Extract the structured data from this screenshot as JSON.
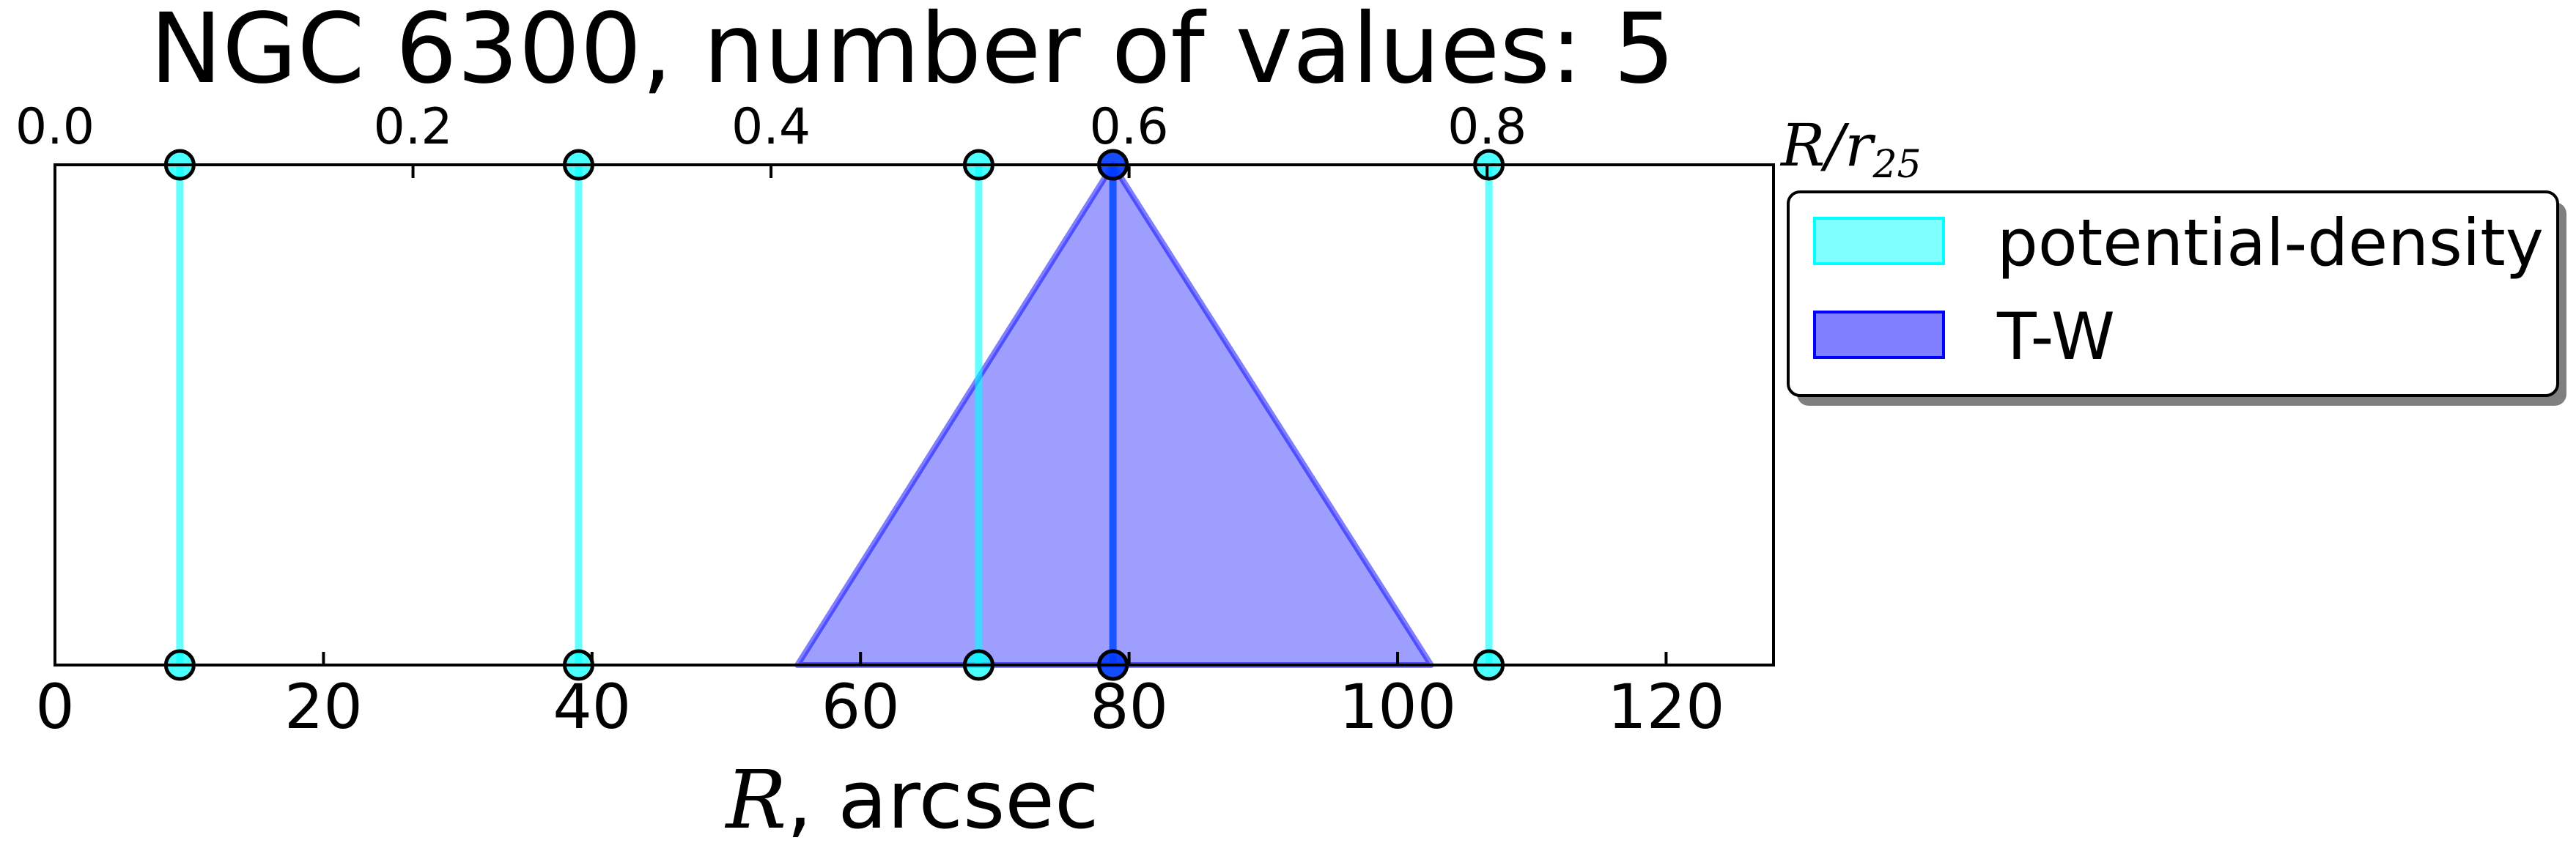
{
  "chart_data": {
    "type": "line",
    "title": "NGC 6300, number of values: 5",
    "xlabel_italic": "R",
    "xlabel_rest": ", arcsec",
    "top_xlabel_main": "R/r",
    "top_xlabel_sub": "25",
    "xlim": [
      0,
      128
    ],
    "ylim": [
      0,
      1
    ],
    "x_ticks": [
      "0",
      "20",
      "40",
      "60",
      "80",
      "100",
      "120"
    ],
    "top_ticks": [
      "0.0",
      "0.2",
      "0.4",
      "0.6",
      "0.8"
    ],
    "top_xlim": [
      0.0,
      0.96
    ],
    "series": [
      {
        "name": "potential-density",
        "kind": "vertical-lines",
        "color": "#00ffff",
        "x": [
          9.3,
          39.0,
          68.8,
          78.8,
          106.8
        ]
      },
      {
        "name": "T-W",
        "kind": "triangle-region",
        "color": "#0000ff",
        "center": 78.8,
        "left": 55.3,
        "right": 102.5
      }
    ],
    "legend": {
      "position": "outside-right",
      "entries": [
        "potential-density",
        "T-W"
      ]
    },
    "grid": false
  }
}
